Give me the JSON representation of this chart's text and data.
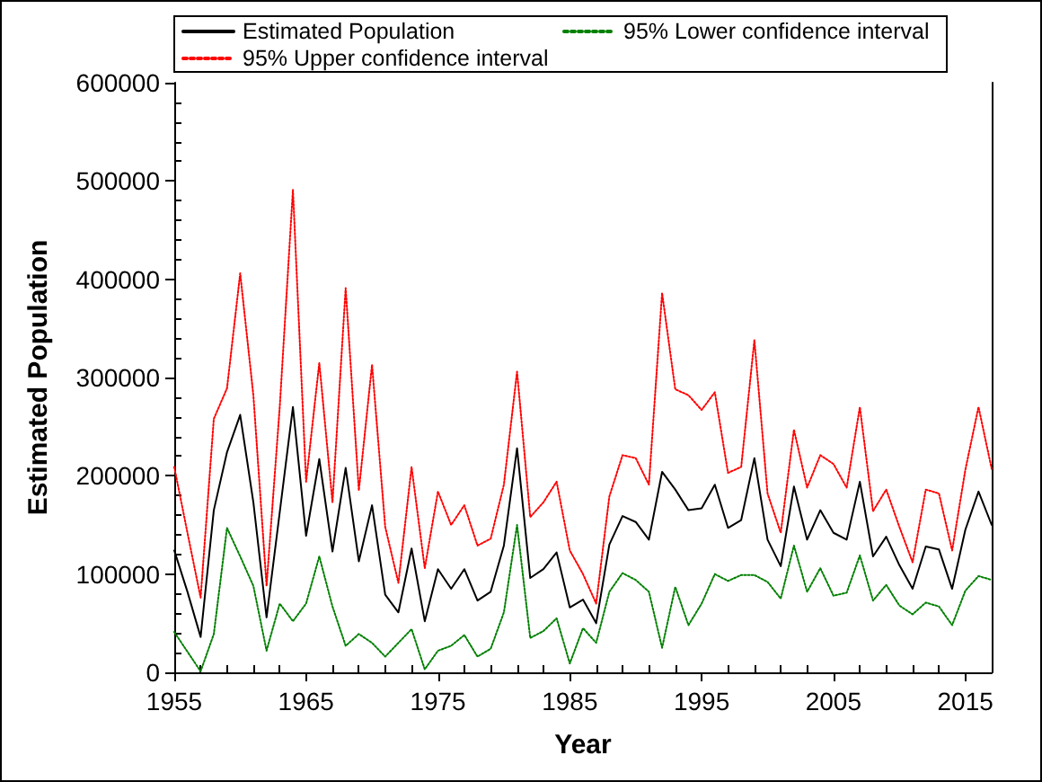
{
  "chart_data": {
    "type": "line",
    "xlabel": "Year",
    "ylabel": "Estimated Population",
    "x": [
      1955,
      1956,
      1957,
      1958,
      1959,
      1960,
      1961,
      1962,
      1963,
      1964,
      1965,
      1966,
      1967,
      1968,
      1969,
      1970,
      1971,
      1972,
      1973,
      1974,
      1975,
      1976,
      1977,
      1978,
      1979,
      1980,
      1981,
      1982,
      1983,
      1984,
      1985,
      1986,
      1987,
      1988,
      1989,
      1990,
      1991,
      1992,
      1993,
      1994,
      1995,
      1996,
      1997,
      1998,
      1999,
      2000,
      2001,
      2002,
      2003,
      2004,
      2005,
      2006,
      2007,
      2008,
      2009,
      2010,
      2011,
      2012,
      2013,
      2014,
      2015,
      2016,
      2017
    ],
    "series": [
      {
        "name": "Estimated Population",
        "color": "#000000",
        "line_style": "solid",
        "values": [
          124000,
          82000,
          36000,
          165000,
          224000,
          262000,
          173000,
          56000,
          163000,
          270000,
          139000,
          217000,
          123000,
          208000,
          113000,
          170000,
          79000,
          61000,
          126000,
          52000,
          105000,
          85000,
          105000,
          73000,
          82000,
          129000,
          228000,
          96000,
          105000,
          122000,
          66000,
          74000,
          50000,
          130000,
          159000,
          153000,
          135000,
          204000,
          186000,
          165000,
          167000,
          191000,
          147000,
          155000,
          218000,
          135000,
          108000,
          189000,
          135000,
          165000,
          142000,
          135000,
          194000,
          118000,
          138000,
          109000,
          85000,
          128000,
          125000,
          85000,
          145000,
          184000,
          150000
        ]
      },
      {
        "name": "95% Lower confidence interval",
        "color": "#008000",
        "line_style": "dotted",
        "values": [
          41000,
          21000,
          1000,
          39000,
          147000,
          118000,
          88000,
          22000,
          70000,
          52000,
          70000,
          118000,
          67000,
          27000,
          39000,
          30000,
          16000,
          30000,
          44000,
          3000,
          22000,
          27000,
          38000,
          16000,
          24000,
          61000,
          150000,
          35000,
          42000,
          55000,
          9000,
          45000,
          30000,
          82000,
          101000,
          94000,
          82000,
          25000,
          87000,
          48000,
          70000,
          100000,
          93000,
          99000,
          99000,
          92000,
          75000,
          129000,
          82000,
          106000,
          78000,
          81000,
          119000,
          73000,
          89000,
          68000,
          59000,
          71000,
          67000,
          48000,
          83000,
          98000,
          94000
        ]
      },
      {
        "name": "95% Upper confidence interval",
        "color": "#ff0000",
        "line_style": "dotted",
        "values": [
          209000,
          142000,
          76000,
          258000,
          289000,
          406000,
          282000,
          88000,
          270000,
          491000,
          194000,
          315000,
          173000,
          391000,
          185000,
          313000,
          148000,
          91000,
          209000,
          106000,
          184000,
          150000,
          170000,
          129000,
          136000,
          191000,
          306000,
          158000,
          173000,
          194000,
          124000,
          100000,
          70000,
          179000,
          221000,
          218000,
          191000,
          386000,
          288000,
          282000,
          267000,
          285000,
          203000,
          209000,
          338000,
          182000,
          142000,
          247000,
          188000,
          221000,
          212000,
          188000,
          270000,
          164000,
          186000,
          148000,
          112000,
          186000,
          182000,
          124000,
          206000,
          270000,
          207000
        ]
      }
    ],
    "xlim": [
      1955,
      2017
    ],
    "xticks": [
      1955,
      {
        "value": 1957,
        "label": null
      },
      {
        "value": 1959,
        "label": null
      },
      {
        "value": 1961,
        "label": null
      },
      {
        "value": 1963,
        "label": null
      },
      1965,
      {
        "value": 1967,
        "label": null
      },
      {
        "value": 1969,
        "label": null
      },
      {
        "value": 1971,
        "label": null
      },
      {
        "value": 1973,
        "label": null
      },
      1975,
      {
        "value": 1977,
        "label": null
      },
      {
        "value": 1979,
        "label": null
      },
      {
        "value": 1981,
        "label": null
      },
      {
        "value": 1983,
        "label": null
      },
      1985,
      {
        "value": 1987,
        "label": null
      },
      {
        "value": 1989,
        "label": null
      },
      {
        "value": 1991,
        "label": null
      },
      {
        "value": 1993,
        "label": null
      },
      1995,
      {
        "value": 1997,
        "label": null
      },
      {
        "value": 1999,
        "label": null
      },
      {
        "value": 2001,
        "label": null
      },
      {
        "value": 2003,
        "label": null
      },
      2005,
      {
        "value": 2007,
        "label": null
      },
      {
        "value": 2009,
        "label": null
      },
      {
        "value": 2011,
        "label": null
      },
      {
        "value": 2013,
        "label": null
      },
      2015,
      {
        "value": 2017,
        "label": null
      }
    ],
    "ylim": [
      0,
      600000
    ],
    "yticks": [
      0,
      {
        "value": 20000,
        "label": null
      },
      {
        "value": 40000,
        "label": null
      },
      {
        "value": 60000,
        "label": null
      },
      {
        "value": 80000,
        "label": null
      },
      100000,
      {
        "value": 120000,
        "label": null
      },
      {
        "value": 140000,
        "label": null
      },
      {
        "value": 160000,
        "label": null
      },
      {
        "value": 180000,
        "label": null
      },
      200000,
      {
        "value": 220000,
        "label": null
      },
      {
        "value": 240000,
        "label": null
      },
      {
        "value": 260000,
        "label": null
      },
      {
        "value": 280000,
        "label": null
      },
      300000,
      {
        "value": 320000,
        "label": null
      },
      {
        "value": 340000,
        "label": null
      },
      {
        "value": 360000,
        "label": null
      },
      {
        "value": 380000,
        "label": null
      },
      400000,
      {
        "value": 420000,
        "label": null
      },
      {
        "value": 440000,
        "label": null
      },
      {
        "value": 460000,
        "label": null
      },
      {
        "value": 480000,
        "label": null
      },
      500000,
      {
        "value": 520000,
        "label": null
      },
      {
        "value": 540000,
        "label": null
      },
      {
        "value": 560000,
        "label": null
      },
      {
        "value": 580000,
        "label": null
      },
      600000
    ],
    "legend": "top"
  }
}
